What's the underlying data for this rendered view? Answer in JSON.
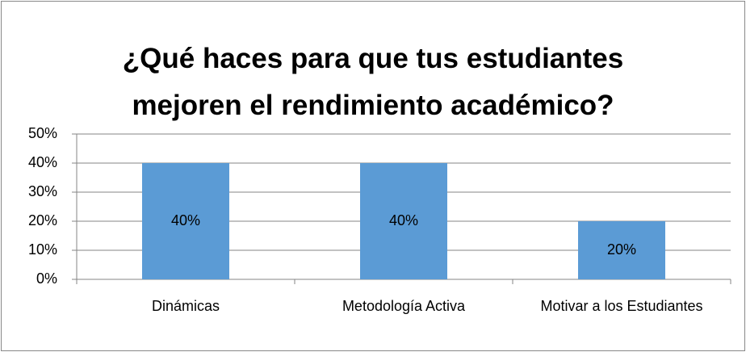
{
  "chart_data": {
    "type": "bar",
    "title": "¿Qué haces para que tus estudiantes mejoren el rendimiento académico?",
    "categories": [
      "Dinámicas",
      "Metodología Activa",
      "Motivar a los Estudiantes"
    ],
    "values": [
      40,
      40,
      20
    ],
    "value_labels": [
      "40%",
      "40%",
      "20%"
    ],
    "color": "#5b9bd5",
    "ylim": [
      0,
      50
    ],
    "yticks": [
      {
        "value": 0,
        "label": "0%"
      },
      {
        "value": 10,
        "label": "10%"
      },
      {
        "value": 20,
        "label": "20%"
      },
      {
        "value": 30,
        "label": "30%"
      },
      {
        "value": 40,
        "label": "40%"
      },
      {
        "value": 50,
        "label": "50%"
      }
    ],
    "grid": true
  }
}
